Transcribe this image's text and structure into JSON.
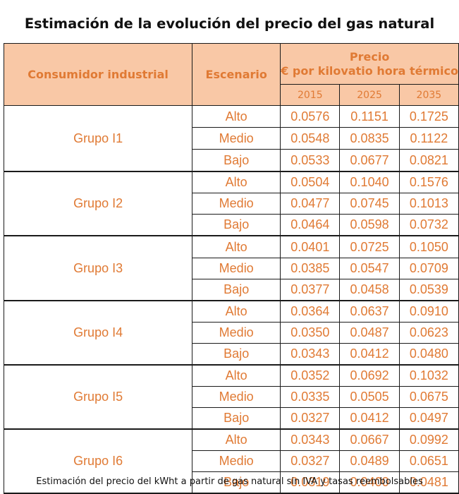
{
  "title": "Estimación de la evolución del precio del gas natural",
  "headers": {
    "consumer": "Consumidor industrial",
    "scenario": "Escenario",
    "price_line1": "Precio",
    "price_line2": "€ por kilovatio hora térmico",
    "years": [
      "2015",
      "2025",
      "2035"
    ]
  },
  "groups": [
    {
      "name": "Grupo I1",
      "rows": [
        {
          "scenario": "Alto",
          "values": [
            "0.0576",
            "0.1151",
            "0.1725"
          ]
        },
        {
          "scenario": "Medio",
          "values": [
            "0.0548",
            "0.0835",
            "0.1122"
          ]
        },
        {
          "scenario": "Bajo",
          "values": [
            "0.0533",
            "0.0677",
            "0.0821"
          ]
        }
      ]
    },
    {
      "name": "Grupo I2",
      "rows": [
        {
          "scenario": "Alto",
          "values": [
            "0.0504",
            "0.1040",
            "0.1576"
          ]
        },
        {
          "scenario": "Medio",
          "values": [
            "0.0477",
            "0.0745",
            "0.1013"
          ]
        },
        {
          "scenario": "Bajo",
          "values": [
            "0.0464",
            "0.0598",
            "0.0732"
          ]
        }
      ]
    },
    {
      "name": "Grupo I3",
      "rows": [
        {
          "scenario": "Alto",
          "values": [
            "0.0401",
            "0.0725",
            "0.1050"
          ]
        },
        {
          "scenario": "Medio",
          "values": [
            "0.0385",
            "0.0547",
            "0.0709"
          ]
        },
        {
          "scenario": "Bajo",
          "values": [
            "0.0377",
            "0.0458",
            "0.0539"
          ]
        }
      ]
    },
    {
      "name": "Grupo I4",
      "rows": [
        {
          "scenario": "Alto",
          "values": [
            "0.0364",
            "0.0637",
            "0.0910"
          ]
        },
        {
          "scenario": "Medio",
          "values": [
            "0.0350",
            "0.0487",
            "0.0623"
          ]
        },
        {
          "scenario": "Bajo",
          "values": [
            "0.0343",
            "0.0412",
            "0.0480"
          ]
        }
      ]
    },
    {
      "name": "Grupo I5",
      "rows": [
        {
          "scenario": "Alto",
          "values": [
            "0.0352",
            "0.0692",
            "0.1032"
          ]
        },
        {
          "scenario": "Medio",
          "values": [
            "0.0335",
            "0.0505",
            "0.0675"
          ]
        },
        {
          "scenario": "Bajo",
          "values": [
            "0.0327",
            "0.0412",
            "0.0497"
          ]
        }
      ]
    },
    {
      "name": "Grupo I6",
      "rows": [
        {
          "scenario": "Alto",
          "values": [
            "0.0343",
            "0.0667",
            "0.0992"
          ]
        },
        {
          "scenario": "Medio",
          "values": [
            "0.0327",
            "0.0489",
            "0.0651"
          ]
        },
        {
          "scenario": "Bajo",
          "values": [
            "0.0319",
            "0.0400",
            "0.0481"
          ]
        }
      ]
    }
  ],
  "caption": "Estimación del precio del kWht a partir de gas natural sin IVA y tasas reembolsables",
  "colors": {
    "header_fill": "#f9c8a6",
    "text_accent": "#e07a34",
    "border": "#1a1a1a"
  }
}
